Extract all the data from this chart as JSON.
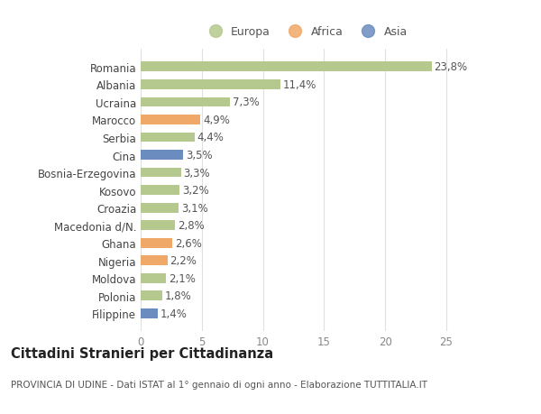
{
  "categories": [
    "Filippine",
    "Polonia",
    "Moldova",
    "Nigeria",
    "Ghana",
    "Macedonia d/N.",
    "Croazia",
    "Kosovo",
    "Bosnia-Erzegovina",
    "Cina",
    "Serbia",
    "Marocco",
    "Ucraina",
    "Albania",
    "Romania"
  ],
  "values": [
    1.4,
    1.8,
    2.1,
    2.2,
    2.6,
    2.8,
    3.1,
    3.2,
    3.3,
    3.5,
    4.4,
    4.9,
    7.3,
    11.4,
    23.8
  ],
  "labels": [
    "1,4%",
    "1,8%",
    "2,1%",
    "2,2%",
    "2,6%",
    "2,8%",
    "3,1%",
    "3,2%",
    "3,3%",
    "3,5%",
    "4,4%",
    "4,9%",
    "7,3%",
    "11,4%",
    "23,8%"
  ],
  "continent": [
    "Asia",
    "Europa",
    "Europa",
    "Africa",
    "Africa",
    "Europa",
    "Europa",
    "Europa",
    "Europa",
    "Asia",
    "Europa",
    "Africa",
    "Europa",
    "Europa",
    "Europa"
  ],
  "colors": {
    "Europa": "#b5c98e",
    "Africa": "#f0a868",
    "Asia": "#6b8cbf"
  },
  "xlim": [
    0,
    27
  ],
  "xticks": [
    0,
    5,
    10,
    15,
    20,
    25
  ],
  "title": "Cittadini Stranieri per Cittadinanza",
  "subtitle": "PROVINCIA DI UDINE - Dati ISTAT al 1° gennaio di ogni anno - Elaborazione TUTTITALIA.IT",
  "bg_color": "#ffffff",
  "grid_color": "#e0e0e0",
  "bar_height": 0.55,
  "label_fontsize": 8.5,
  "tick_fontsize": 8.5,
  "title_fontsize": 10.5,
  "subtitle_fontsize": 7.5
}
